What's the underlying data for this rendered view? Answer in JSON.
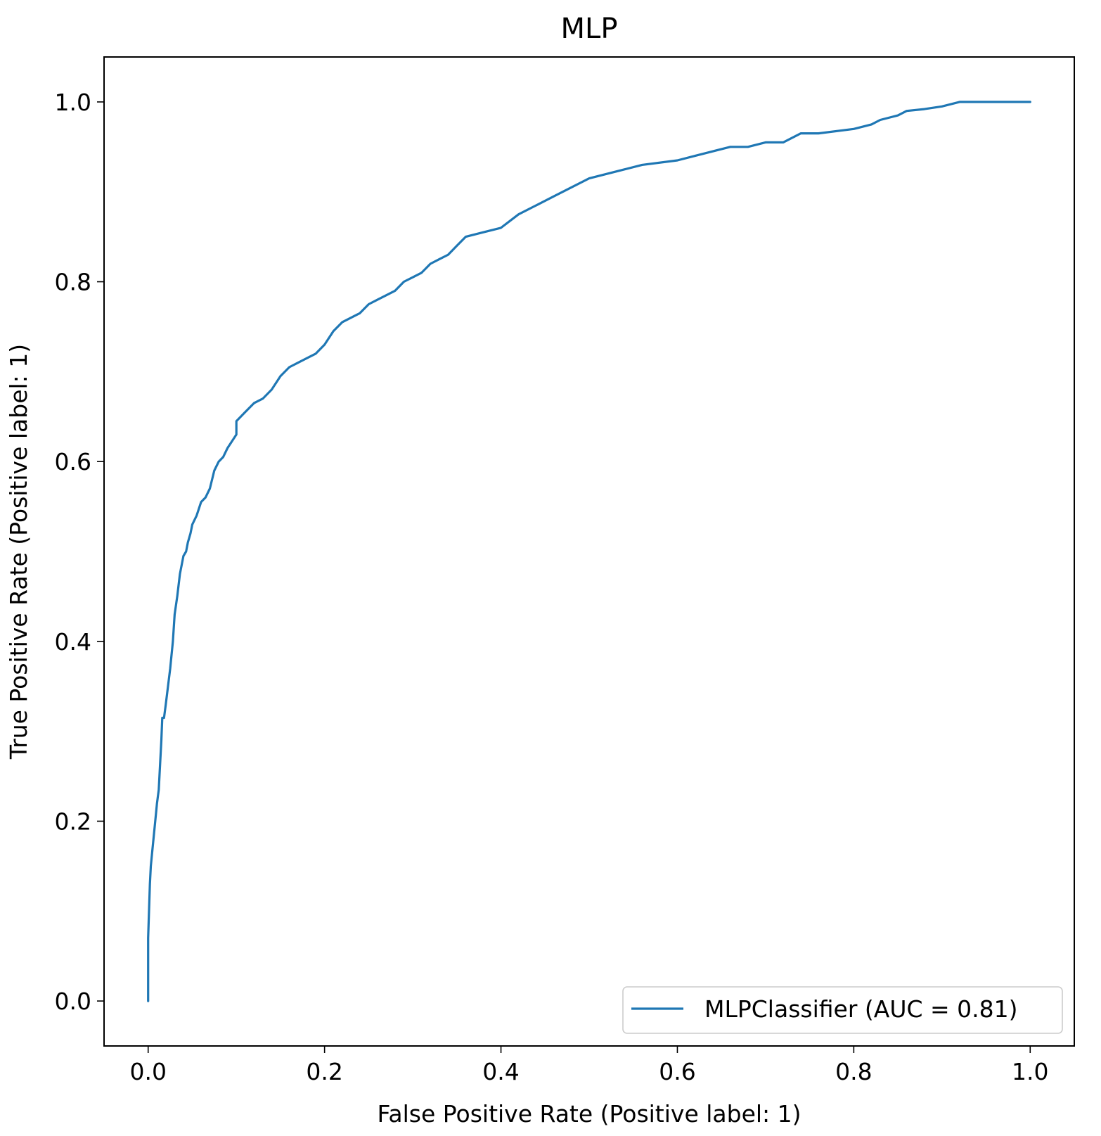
{
  "chart_data": {
    "type": "line",
    "title": "MLP",
    "xlabel": "False Positive Rate (Positive label: 1)",
    "ylabel": "True Positive Rate (Positive label: 1)",
    "xlim": [
      -0.05,
      1.05
    ],
    "ylim": [
      -0.05,
      1.05
    ],
    "xticks": [
      0.0,
      0.2,
      0.4,
      0.6,
      0.8,
      1.0
    ],
    "xtick_labels": [
      "0.0",
      "0.2",
      "0.4",
      "0.6",
      "0.8",
      "1.0"
    ],
    "yticks": [
      0.0,
      0.2,
      0.4,
      0.6,
      0.8,
      1.0
    ],
    "ytick_labels": [
      "0.0",
      "0.2",
      "0.4",
      "0.6",
      "0.8",
      "1.0"
    ],
    "grid": false,
    "legend_position": "lower-right",
    "series": [
      {
        "name": "MLPClassifier (AUC = 0.81)",
        "color": "#1f77b4",
        "x": [
          0.0,
          0.0,
          0.002,
          0.003,
          0.005,
          0.008,
          0.01,
          0.012,
          0.015,
          0.016,
          0.018,
          0.02,
          0.025,
          0.028,
          0.03,
          0.033,
          0.036,
          0.04,
          0.043,
          0.045,
          0.048,
          0.05,
          0.055,
          0.06,
          0.065,
          0.07,
          0.075,
          0.08,
          0.085,
          0.09,
          0.1,
          0.1,
          0.11,
          0.12,
          0.13,
          0.14,
          0.15,
          0.16,
          0.17,
          0.18,
          0.19,
          0.2,
          0.21,
          0.22,
          0.24,
          0.25,
          0.26,
          0.27,
          0.28,
          0.29,
          0.3,
          0.31,
          0.32,
          0.33,
          0.34,
          0.35,
          0.36,
          0.38,
          0.4,
          0.42,
          0.44,
          0.46,
          0.48,
          0.5,
          0.52,
          0.54,
          0.56,
          0.6,
          0.62,
          0.64,
          0.66,
          0.68,
          0.7,
          0.72,
          0.74,
          0.76,
          0.8,
          0.82,
          0.83,
          0.85,
          0.86,
          0.88,
          0.9,
          0.92,
          0.95,
          0.98,
          1.0
        ],
        "y": [
          0.0,
          0.07,
          0.13,
          0.15,
          0.17,
          0.2,
          0.22,
          0.235,
          0.29,
          0.315,
          0.315,
          0.33,
          0.37,
          0.4,
          0.43,
          0.45,
          0.475,
          0.495,
          0.5,
          0.51,
          0.52,
          0.53,
          0.54,
          0.555,
          0.56,
          0.57,
          0.59,
          0.6,
          0.605,
          0.615,
          0.63,
          0.645,
          0.655,
          0.665,
          0.67,
          0.68,
          0.695,
          0.705,
          0.71,
          0.715,
          0.72,
          0.73,
          0.745,
          0.755,
          0.765,
          0.775,
          0.78,
          0.785,
          0.79,
          0.8,
          0.805,
          0.81,
          0.82,
          0.825,
          0.83,
          0.84,
          0.85,
          0.855,
          0.86,
          0.875,
          0.885,
          0.895,
          0.905,
          0.915,
          0.92,
          0.925,
          0.93,
          0.935,
          0.94,
          0.945,
          0.95,
          0.95,
          0.955,
          0.955,
          0.965,
          0.965,
          0.97,
          0.975,
          0.98,
          0.985,
          0.99,
          0.992,
          0.995,
          1.0,
          1.0,
          1.0,
          1.0
        ]
      }
    ]
  }
}
